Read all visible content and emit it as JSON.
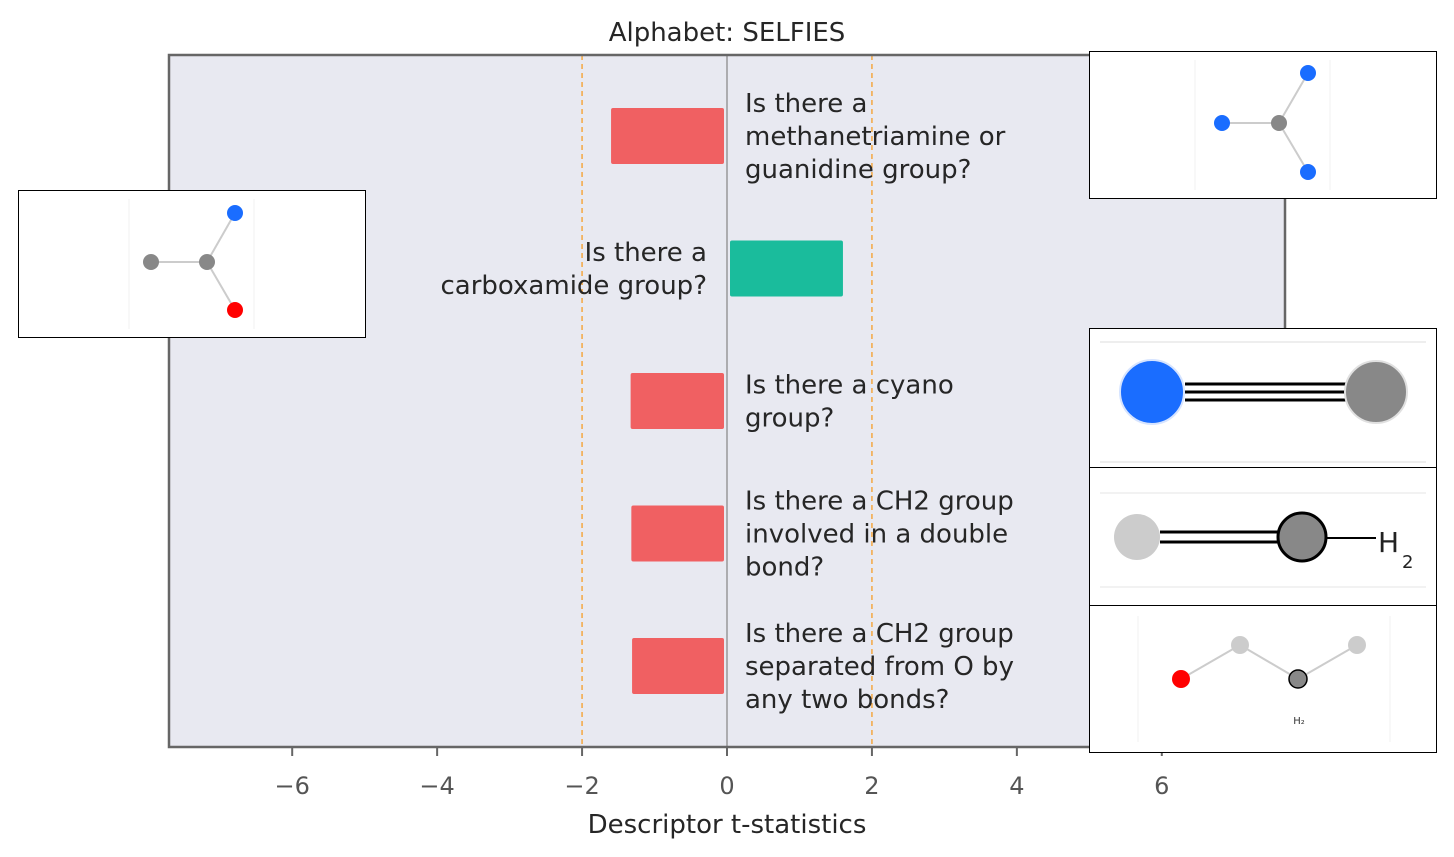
{
  "chart_data": {
    "type": "bar",
    "orientation": "horizontal",
    "title": "Alphabet: SELFIES",
    "xlabel": "Descriptor t-statistics",
    "ylabel": "",
    "xlim": [
      -7.7,
      7.7
    ],
    "xticks": [
      -6,
      -4,
      -2,
      0,
      2,
      4,
      6
    ],
    "xtick_labels": [
      "−6",
      "−4",
      "−2",
      "0",
      "2",
      "4",
      "6"
    ],
    "significance_lines": [
      -2,
      0,
      2
    ],
    "grid": false,
    "colors": {
      "negative": "#f06062",
      "positive": "#1abc9c",
      "threshold_line": "#f5a742",
      "zero_line": "#8c8c8c",
      "plot_background": "#e8e9f1",
      "frame": "#666666",
      "text": "#262626",
      "tick_text": "#555555"
    },
    "bars": [
      {
        "label": [
          "Is there a",
          "methanetriamine or",
          "guanidine group?"
        ],
        "value": -1.6
      },
      {
        "label": [
          "Is there a",
          "carboxamide group?"
        ],
        "value": 1.6
      },
      {
        "label": [
          "Is there a cyano",
          "group?"
        ],
        "value": -1.33
      },
      {
        "label": [
          "Is there a CH2 group",
          "involved in a double",
          "bond?"
        ],
        "value": -1.32
      },
      {
        "label": [
          "Is there a CH2 group",
          "separated from O by",
          "any two bonds?"
        ],
        "value": -1.31
      }
    ],
    "molecule_images": [
      {
        "bar": 0,
        "name": "methanetriamine-molecule-icon"
      },
      {
        "bar": 1,
        "name": "carboxamide-molecule-icon"
      },
      {
        "bar": 2,
        "name": "cyano-molecule-icon"
      },
      {
        "bar": 3,
        "name": "ch2-double-bond-molecule-icon",
        "text": "H",
        "subscript": "2"
      },
      {
        "bar": 4,
        "name": "ch2-separated-o-molecule-icon",
        "text": "H₂"
      }
    ]
  }
}
